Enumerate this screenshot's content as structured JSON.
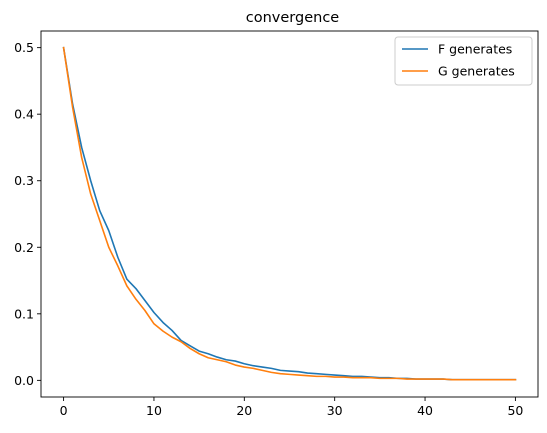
{
  "chart_data": {
    "type": "line",
    "title": "convergence",
    "xlabel": "",
    "ylabel": "",
    "xlim": [
      -2.5,
      52.5
    ],
    "ylim": [
      -0.025,
      0.525
    ],
    "xticks": [
      0,
      10,
      20,
      30,
      40,
      50
    ],
    "yticks": [
      0.0,
      0.1,
      0.2,
      0.3,
      0.4,
      0.5
    ],
    "xtick_labels": [
      "0",
      "10",
      "20",
      "30",
      "40",
      "50"
    ],
    "ytick_labels": [
      "0.0",
      "0.1",
      "0.2",
      "0.3",
      "0.4",
      "0.5"
    ],
    "grid": false,
    "legend_position": "top-right",
    "x": [
      0,
      1,
      2,
      3,
      4,
      5,
      6,
      7,
      8,
      9,
      10,
      11,
      12,
      13,
      14,
      15,
      16,
      17,
      18,
      19,
      20,
      21,
      22,
      23,
      24,
      25,
      26,
      27,
      28,
      29,
      30,
      31,
      32,
      33,
      34,
      35,
      36,
      37,
      38,
      39,
      40,
      41,
      42,
      43,
      44,
      45,
      46,
      47,
      48,
      49,
      50
    ],
    "series": [
      {
        "name": "F generates",
        "color": "#1f77b4",
        "values": [
          0.5,
          0.415,
          0.35,
          0.3,
          0.255,
          0.225,
          0.185,
          0.152,
          0.138,
          0.12,
          0.102,
          0.087,
          0.075,
          0.06,
          0.052,
          0.044,
          0.04,
          0.035,
          0.031,
          0.029,
          0.025,
          0.022,
          0.02,
          0.018,
          0.015,
          0.014,
          0.013,
          0.011,
          0.01,
          0.009,
          0.008,
          0.007,
          0.006,
          0.006,
          0.005,
          0.004,
          0.004,
          0.003,
          0.003,
          0.002,
          0.002,
          0.002,
          0.002,
          0.001,
          0.001,
          0.001,
          0.001,
          0.001,
          0.001,
          0.001,
          0.001
        ]
      },
      {
        "name": "G generates",
        "color": "#ff7f0e",
        "values": [
          0.5,
          0.41,
          0.335,
          0.28,
          0.24,
          0.2,
          0.172,
          0.142,
          0.122,
          0.105,
          0.085,
          0.074,
          0.065,
          0.058,
          0.048,
          0.04,
          0.034,
          0.031,
          0.028,
          0.023,
          0.02,
          0.018,
          0.015,
          0.012,
          0.01,
          0.009,
          0.008,
          0.007,
          0.006,
          0.006,
          0.005,
          0.005,
          0.004,
          0.004,
          0.004,
          0.003,
          0.003,
          0.003,
          0.002,
          0.002,
          0.002,
          0.002,
          0.002,
          0.001,
          0.001,
          0.001,
          0.001,
          0.001,
          0.001,
          0.001,
          0.001
        ]
      }
    ]
  }
}
